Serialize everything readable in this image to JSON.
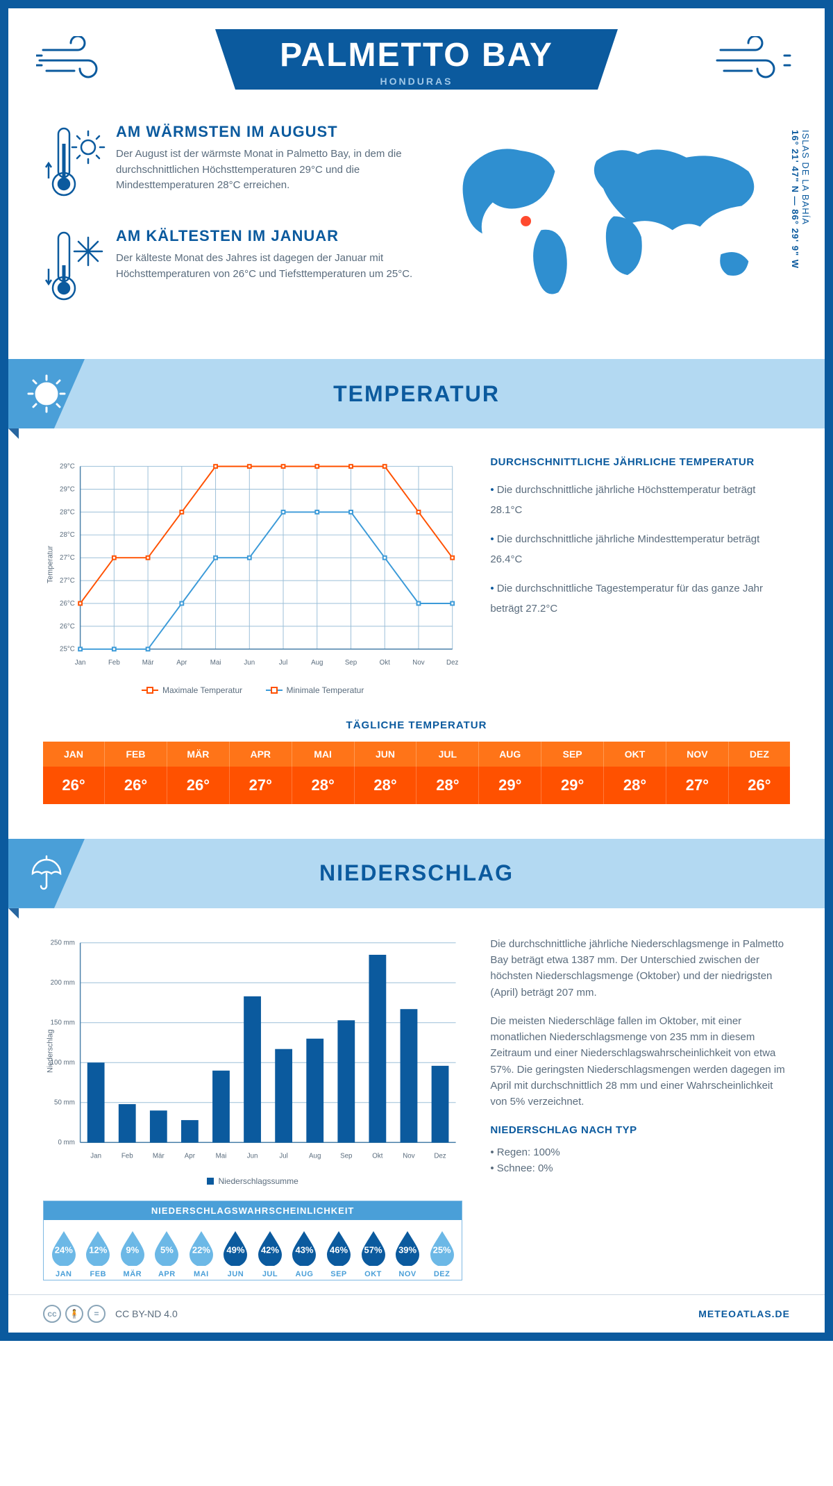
{
  "header": {
    "title": "PALMETTO BAY",
    "subtitle": "HONDURAS"
  },
  "coords": {
    "region": "ISLAS DE LA BAHÍA",
    "lat": "16° 21' 47\" N",
    "lon": "86° 29' 9\" W"
  },
  "warm": {
    "title": "AM WÄRMSTEN IM AUGUST",
    "text": "Der August ist der wärmste Monat in Palmetto Bay, in dem die durchschnittlichen Höchsttemperaturen 29°C und die Mindesttemperaturen 28°C erreichen."
  },
  "cold": {
    "title": "AM KÄLTESTEN IM JANUAR",
    "text": "Der kälteste Monat des Jahres ist dagegen der Januar mit Höchsttemperaturen von 26°C und Tiefsttemperaturen um 25°C."
  },
  "sections": {
    "temp": "TEMPERATUR",
    "precip": "NIEDERSCHLAG"
  },
  "temp_chart": {
    "type": "line",
    "months": [
      "Jan",
      "Feb",
      "Mär",
      "Apr",
      "Mai",
      "Jun",
      "Jul",
      "Aug",
      "Sep",
      "Okt",
      "Nov",
      "Dez"
    ],
    "max": [
      26,
      27,
      27,
      28,
      29,
      29,
      29,
      29,
      29,
      29,
      28,
      27
    ],
    "min": [
      25,
      25,
      25,
      26,
      27,
      27,
      28,
      28,
      28,
      27,
      26,
      26
    ],
    "ylim": [
      25,
      29
    ],
    "ytick_step": 0.5,
    "max_color": "#ff5100",
    "min_color": "#3b9ad8",
    "grid_color": "#9bbfd8",
    "bg": "#ffffff",
    "y_title": "Temperatur",
    "legend_max": "Maximale Temperatur",
    "legend_min": "Minimale Temperatur",
    "line_width": 2,
    "marker_size": 5
  },
  "temp_side": {
    "title": "DURCHSCHNITTLICHE JÄHRLICHE TEMPERATUR",
    "b1": "Die durchschnittliche jährliche Höchsttemperatur beträgt 28.1°C",
    "b2": "Die durchschnittliche jährliche Mindesttemperatur beträgt 26.4°C",
    "b3": "Die durchschnittliche Tagestemperatur für das ganze Jahr beträgt 27.2°C"
  },
  "daily": {
    "title": "TÄGLICHE TEMPERATUR",
    "months": [
      "JAN",
      "FEB",
      "MÄR",
      "APR",
      "MAI",
      "JUN",
      "JUL",
      "AUG",
      "SEP",
      "OKT",
      "NOV",
      "DEZ"
    ],
    "values": [
      "26°",
      "26°",
      "26°",
      "27°",
      "28°",
      "28°",
      "28°",
      "29°",
      "29°",
      "28°",
      "27°",
      "26°"
    ],
    "header_bg": "#ff7418",
    "row_bg": "#ff5100",
    "text_color": "#ffffff"
  },
  "precip_chart": {
    "type": "bar",
    "months": [
      "Jan",
      "Feb",
      "Mär",
      "Apr",
      "Mai",
      "Jun",
      "Jul",
      "Aug",
      "Sep",
      "Okt",
      "Nov",
      "Dez"
    ],
    "values": [
      100,
      48,
      40,
      28,
      90,
      183,
      117,
      130,
      153,
      235,
      167,
      96
    ],
    "ylim": [
      0,
      250
    ],
    "ytick_step": 50,
    "bar_color": "#0b5a9e",
    "grid_color": "#9bbfd8",
    "y_title": "Niederschlag",
    "legend": "Niederschlagssumme",
    "bar_width": 0.55
  },
  "precip_side": {
    "p1": "Die durchschnittliche jährliche Niederschlagsmenge in Palmetto Bay beträgt etwa 1387 mm. Der Unterschied zwischen der höchsten Niederschlagsmenge (Oktober) und der niedrigsten (April) beträgt 207 mm.",
    "p2": "Die meisten Niederschläge fallen im Oktober, mit einer monatlichen Niederschlagsmenge von 235 mm in diesem Zeitraum und einer Niederschlagswahrscheinlichkeit von etwa 57%. Die geringsten Niederschlagsmengen werden dagegen im April mit durchschnittlich 28 mm und einer Wahrscheinlichkeit von 5% verzeichnet.",
    "type_title": "NIEDERSCHLAG NACH TYP",
    "t1": "Regen: 100%",
    "t2": "Schnee: 0%"
  },
  "prob": {
    "title": "NIEDERSCHLAGSWAHRSCHEINLICHKEIT",
    "months": [
      "JAN",
      "FEB",
      "MÄR",
      "APR",
      "MAI",
      "JUN",
      "JUL",
      "AUG",
      "SEP",
      "OKT",
      "NOV",
      "DEZ"
    ],
    "pct": [
      "24%",
      "12%",
      "9%",
      "5%",
      "22%",
      "49%",
      "42%",
      "43%",
      "46%",
      "57%",
      "39%",
      "25%"
    ],
    "pct_num": [
      24,
      12,
      9,
      5,
      22,
      49,
      42,
      43,
      46,
      57,
      39,
      25
    ],
    "light_color": "#6cb8e6",
    "dark_color": "#0b5a9e",
    "threshold": 35
  },
  "footer": {
    "license": "CC BY-ND 4.0",
    "site": "METEOATLAS.DE"
  },
  "colors": {
    "primary": "#0b5a9e",
    "light_blue": "#b3d9f2",
    "mid_blue": "#4a9fd8"
  }
}
